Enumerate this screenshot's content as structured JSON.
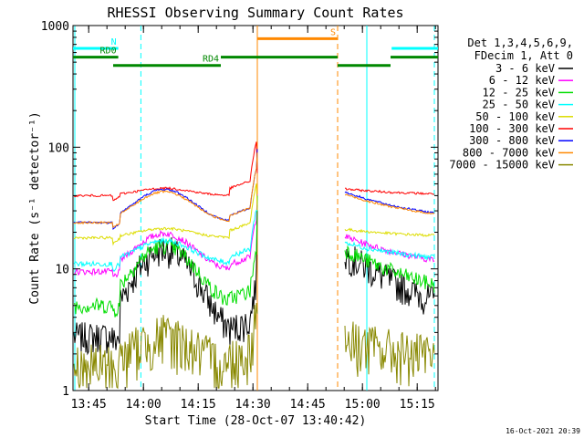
{
  "chart_data": {
    "type": "line",
    "title": "RHESSI Observing Summary Count Rates",
    "xlabel": "Start Time (28-Oct-07 13:40:42)",
    "ylabel": "Count Rate (s⁻¹ detector⁻¹)",
    "y_scale": "log",
    "ylim": [
      1,
      1000
    ],
    "xlim_minutes": [
      0,
      100
    ],
    "x_ticks": [
      {
        "label": "13:45",
        "minute": 4.3
      },
      {
        "label": "14:00",
        "minute": 19.3
      },
      {
        "label": "14:15",
        "minute": 34.3
      },
      {
        "label": "14:30",
        "minute": 49.3
      },
      {
        "label": "14:45",
        "minute": 64.3
      },
      {
        "label": "15:00",
        "minute": 79.3
      },
      {
        "label": "15:15",
        "minute": 94.3
      }
    ],
    "y_ticks": [
      {
        "label": "1",
        "value": 1
      },
      {
        "label": "10",
        "value": 10
      },
      {
        "label": "100",
        "value": 100
      },
      {
        "label": "1000",
        "value": 1000
      }
    ],
    "legend": {
      "header": [
        "Det 1,3,4,5,6,9,",
        "FDecim 1, Att 0"
      ],
      "placement": "right"
    },
    "series": [
      {
        "name": "3 - 6 keV",
        "color": "#000000",
        "a": 2.8,
        "b": 14.5,
        "n": 0.6
      },
      {
        "name": "6 - 12 keV",
        "color": "#ff00ff",
        "a": 9.5,
        "b": 19.5,
        "n": 0.12
      },
      {
        "name": "12 - 25 keV",
        "color": "#00dd00",
        "a": 5.0,
        "b": 15.5,
        "n": 0.3
      },
      {
        "name": "25 - 50 keV",
        "color": "#00ffff",
        "a": 11.0,
        "b": 17.0,
        "n": 0.1
      },
      {
        "name": "50 - 100 keV",
        "color": "#dddd00",
        "a": 18.0,
        "b": 21.5,
        "n": 0.05
      },
      {
        "name": "100 - 300 keV",
        "color": "#ff0000",
        "a": 40.0,
        "b": 46.0,
        "n": 0.04
      },
      {
        "name": "300 - 800 keV",
        "color": "#0000ff",
        "a": 24.0,
        "b": 45.0,
        "n": 0.04
      },
      {
        "name": "800 - 7000 keV",
        "color": "#ff8800",
        "a": 24.0,
        "b": 43.0,
        "n": 0.04
      },
      {
        "name": "7000 - 15000 keV",
        "color": "#888800",
        "a": 1.6,
        "b": 2.8,
        "n": 1.0
      }
    ],
    "flags": [
      {
        "label": "N",
        "color": "#00ffff",
        "y": 650,
        "start": 0,
        "end": 12.4
      },
      {
        "label": "",
        "color": "#00ffff",
        "y": 650,
        "start": 87.3,
        "end": 100
      },
      {
        "label": "RD0",
        "color": "#008800",
        "y": 550,
        "start": 0,
        "end": 12.4
      },
      {
        "label": "",
        "color": "#008800",
        "y": 550,
        "start": 40.5,
        "end": 72.5
      },
      {
        "label": "",
        "color": "#008800",
        "y": 550,
        "start": 87.0,
        "end": 100
      },
      {
        "label": "RD4",
        "color": "#008800",
        "y": 470,
        "start": 11,
        "end": 40.5
      },
      {
        "label": "",
        "color": "#008800",
        "y": 470,
        "start": 72.5,
        "end": 87.0
      },
      {
        "label": "S",
        "color": "#ff8800",
        "y": 780,
        "start": 50.5,
        "end": 72.5
      }
    ],
    "vertical_markers": [
      {
        "minute": 0.5,
        "color": "#00ffff",
        "style": "solid"
      },
      {
        "minute": 18.6,
        "color": "#00ffff",
        "style": "dashed"
      },
      {
        "minute": 50.5,
        "color": "#ff8800",
        "style": "solid"
      },
      {
        "minute": 72.5,
        "color": "#ff8800",
        "style": "dashed"
      },
      {
        "minute": 80.5,
        "color": "#00ffff",
        "style": "solid"
      },
      {
        "minute": 99.0,
        "color": "#00ffff",
        "style": "dashed"
      }
    ],
    "timestamp": "16-Oct-2021 20:39"
  }
}
